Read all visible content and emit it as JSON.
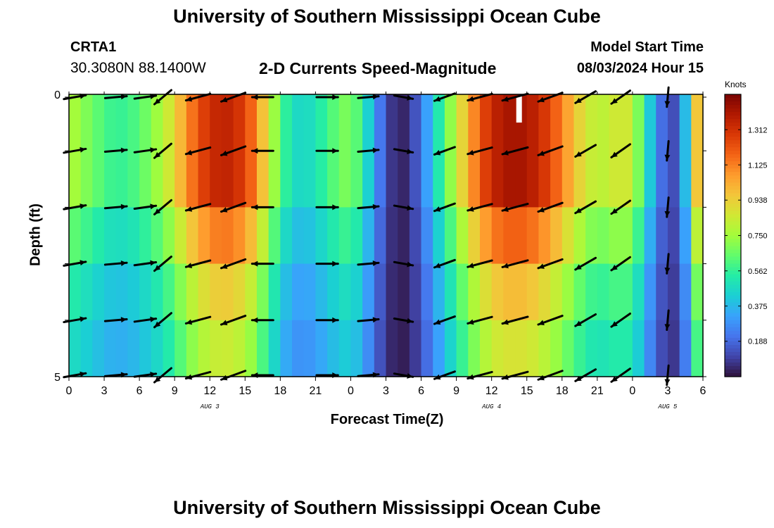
{
  "header": {
    "title": "University of Southern Mississippi Ocean Cube",
    "station_id": "CRTA1",
    "station_coords": "30.3080N  88.1400W",
    "plot_title": "2-D Currents Speed-Magnitude",
    "model_start_label": "Model Start Time",
    "model_start_value": "08/03/2024 Hour 15"
  },
  "footer": {
    "title": "University of Southern Mississippi Ocean Cube"
  },
  "chart_data": {
    "type": "heatmap",
    "title": "2-D Currents Speed-Magnitude",
    "xlabel": "Forecast Time(Z)",
    "ylabel": "Depth (ft)",
    "x_unit": "hours since 08/03 00Z",
    "xlim": [
      0,
      54
    ],
    "ylim": [
      0,
      5
    ],
    "x_ticks": [
      0,
      3,
      6,
      9,
      12,
      15,
      18,
      21,
      24,
      27,
      30,
      33,
      36,
      39,
      42,
      45,
      48,
      51,
      54
    ],
    "x_tick_labels": [
      "0",
      "3",
      "6",
      "9",
      "12",
      "15",
      "18",
      "21",
      "0",
      "3",
      "6",
      "9",
      "12",
      "15",
      "18",
      "21",
      "0",
      "3",
      "6"
    ],
    "y_tick_labels": [
      {
        "value": 0,
        "label": "0"
      },
      {
        "value": 5,
        "label": "5"
      }
    ],
    "date_labels": [
      {
        "x": 12,
        "label": "AUG 3"
      },
      {
        "x": 36,
        "label": "AUG 4"
      },
      {
        "x": 51,
        "label": "AUG 5"
      }
    ],
    "colorbar": {
      "label": "Knots",
      "min": 0.0,
      "max": 1.5,
      "ticks": [
        0.188,
        0.375,
        0.562,
        0.75,
        0.938,
        1.125,
        1.312
      ],
      "tick_labels": [
        "0.188",
        "0.375",
        "0.562",
        "0.750",
        "0.938",
        "1.125",
        "1.312"
      ],
      "colormap": [
        "#30123b",
        "#4145ab",
        "#4675ed",
        "#39a2fc",
        "#1bcfd4",
        "#24eca6",
        "#61fc6c",
        "#a4fc3b",
        "#d1e834",
        "#f3c63a",
        "#fe9b2d",
        "#f36315",
        "#d93806",
        "#b11901",
        "#7a0402"
      ]
    },
    "depth_bands": 5,
    "speed_profile_hours": [
      0,
      1,
      2,
      3,
      4,
      5,
      6,
      7,
      8,
      9,
      10,
      11,
      12,
      13,
      14,
      15,
      16,
      17,
      18,
      19,
      20,
      21,
      22,
      23,
      24,
      25,
      26,
      27,
      28,
      29,
      30,
      31,
      32,
      33,
      34,
      35,
      36,
      37,
      38,
      39,
      40,
      41,
      42,
      43,
      44,
      45,
      46,
      47,
      48,
      49,
      50,
      51,
      52,
      53,
      54
    ],
    "speed_profile_surface": [
      0.78,
      0.72,
      0.66,
      0.6,
      0.56,
      0.58,
      0.62,
      0.7,
      0.78,
      0.92,
      1.08,
      1.22,
      1.32,
      1.36,
      1.34,
      1.26,
      1.1,
      0.85,
      0.62,
      0.48,
      0.45,
      0.5,
      0.58,
      0.66,
      0.7,
      0.55,
      0.32,
      0.12,
      0.03,
      0.06,
      0.22,
      0.42,
      0.62,
      0.82,
      1.02,
      1.2,
      1.34,
      1.4,
      1.42,
      1.4,
      1.34,
      1.24,
      1.12,
      0.98,
      0.86,
      0.8,
      0.82,
      0.88,
      0.82,
      0.55,
      0.28,
      0.12,
      0.14,
      0.62,
      1.3
    ],
    "depth_factors": [
      1.0,
      1.0,
      0.84,
      0.7,
      0.62
    ],
    "arrow_rows_depth": [
      0.05,
      1.0,
      2.0,
      3.0,
      4.0,
      5.0
    ],
    "arrows": [
      {
        "hour": 0.5,
        "dir_deg": -10,
        "speed": 0.7
      },
      {
        "hour": 4,
        "dir_deg": -5,
        "speed": 0.6
      },
      {
        "hour": 6.5,
        "dir_deg": -8,
        "speed": 0.6
      },
      {
        "hour": 8,
        "dir_deg": 140,
        "speed": 0.65
      },
      {
        "hour": 11,
        "dir_deg": 165,
        "speed": 1.2
      },
      {
        "hour": 14,
        "dir_deg": 160,
        "speed": 1.3
      },
      {
        "hour": 16.5,
        "dir_deg": 180,
        "speed": 0.5
      },
      {
        "hour": 22,
        "dir_deg": 0,
        "speed": 0.55
      },
      {
        "hour": 25.5,
        "dir_deg": -5,
        "speed": 0.4
      },
      {
        "hour": 28.5,
        "dir_deg": 10,
        "speed": 0.1
      },
      {
        "hour": 32,
        "dir_deg": 160,
        "speed": 0.6
      },
      {
        "hour": 35,
        "dir_deg": 165,
        "speed": 1.2
      },
      {
        "hour": 38,
        "dir_deg": 165,
        "speed": 1.4
      },
      {
        "hour": 41,
        "dir_deg": 160,
        "speed": 1.3
      },
      {
        "hour": 44,
        "dir_deg": 150,
        "speed": 0.9
      },
      {
        "hour": 47,
        "dir_deg": 145,
        "speed": 0.8
      },
      {
        "hour": 51,
        "dir_deg": 95,
        "speed": 0.2
      }
    ]
  }
}
